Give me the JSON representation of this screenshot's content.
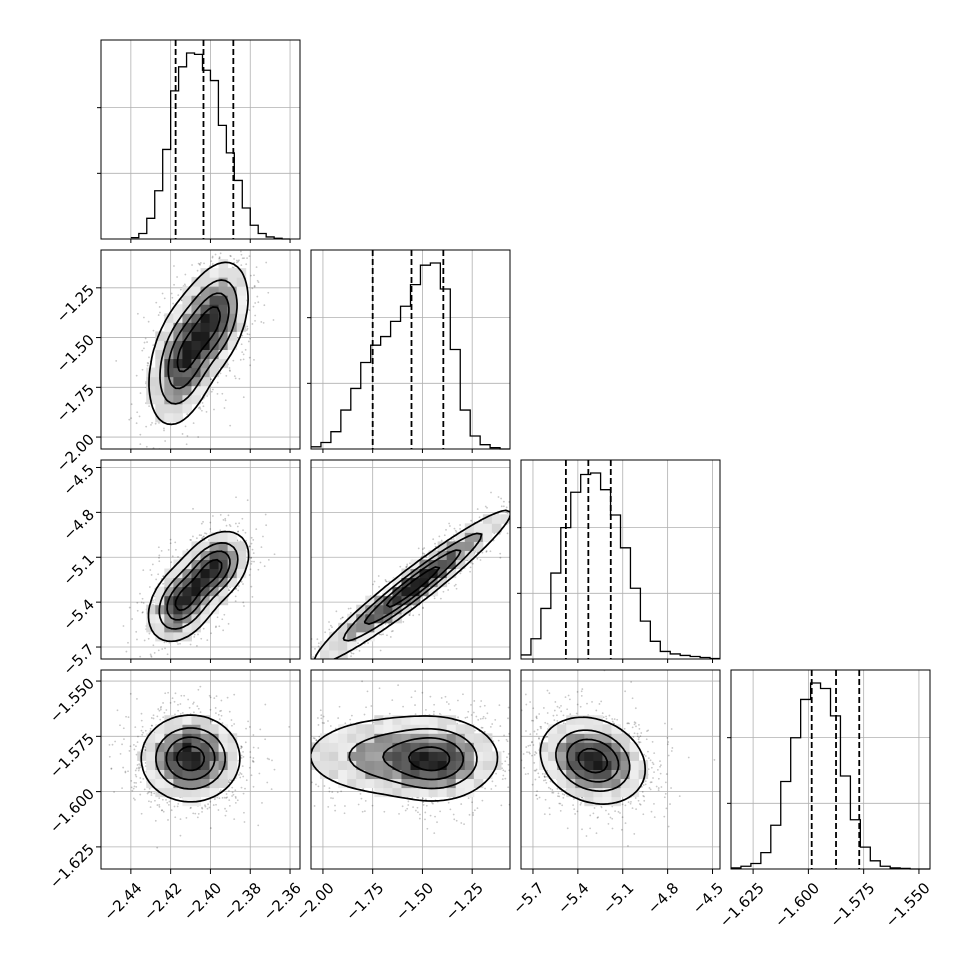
{
  "chart_data": {
    "type": "corner",
    "parameters": [
      {
        "range": [
          -2.455,
          -2.355
        ],
        "ticks": [
          -2.44,
          -2.42,
          -2.4,
          -2.38,
          -2.36
        ],
        "tick_labels": [
          "−2.44",
          "−2.42",
          "−2.40",
          "−2.38",
          "−2.36"
        ],
        "quantiles": [
          -2.4175,
          -2.4035,
          -2.3885
        ],
        "hist": {
          "edges": [
            -2.44,
            -2.436,
            -2.432,
            -2.428,
            -2.424,
            -2.42,
            -2.416,
            -2.412,
            -2.408,
            -2.404,
            -2.4,
            -2.396,
            -2.392,
            -2.388,
            -2.384,
            -2.38,
            -2.376,
            -2.372,
            -2.368,
            -2.364,
            -2.36
          ],
          "counts": [
            2,
            8,
            30,
            70,
            130,
            215,
            250,
            270,
            268,
            245,
            230,
            165,
            125,
            85,
            45,
            20,
            8,
            3,
            1,
            0
          ]
        }
      },
      {
        "range": [
          -2.06,
          -1.06
        ],
        "ticks": [
          -2.0,
          -1.75,
          -1.5,
          -1.25
        ],
        "tick_labels": [
          "−2.00",
          "−1.75",
          "−1.50",
          "−1.25"
        ],
        "quantiles": [
          -1.75,
          -1.555,
          -1.395
        ],
        "hist": {
          "edges": [
            -2.06,
            -2.01,
            -1.96,
            -1.91,
            -1.86,
            -1.81,
            -1.76,
            -1.71,
            -1.66,
            -1.61,
            -1.56,
            -1.51,
            -1.46,
            -1.41,
            -1.36,
            -1.31,
            -1.26,
            -1.21,
            -1.16,
            -1.11,
            -1.06
          ],
          "counts": [
            5,
            15,
            40,
            90,
            140,
            200,
            240,
            260,
            295,
            330,
            380,
            425,
            430,
            370,
            230,
            90,
            30,
            10,
            3,
            0
          ]
        }
      },
      {
        "range": [
          -5.78,
          -4.45
        ],
        "ticks": [
          -5.7,
          -5.4,
          -5.1,
          -4.8,
          -4.5
        ],
        "tick_labels": [
          "−5.7",
          "−5.4",
          "−5.1",
          "−4.8",
          "−4.5"
        ],
        "quantiles": [
          -5.48,
          -5.33,
          -5.18
        ],
        "hist": {
          "edges": [
            -5.78,
            -5.7135,
            -5.647,
            -5.5805,
            -5.514,
            -5.4475,
            -5.381,
            -5.3145,
            -5.248,
            -5.1815,
            -5.115,
            -5.0485,
            -4.982,
            -4.9155,
            -4.849,
            -4.7825,
            -4.716,
            -4.6495,
            -4.583,
            -4.5165,
            -4.45
          ],
          "counts": [
            8,
            40,
            100,
            170,
            260,
            330,
            365,
            368,
            335,
            285,
            220,
            140,
            75,
            35,
            15,
            10,
            7,
            5,
            3,
            1
          ]
        }
      },
      {
        "range": [
          -1.635,
          -1.545
        ],
        "ticks": [
          -1.625,
          -1.6,
          -1.575,
          -1.55
        ],
        "tick_labels": [
          "−1.625",
          "−1.600",
          "−1.575",
          "−1.550"
        ],
        "quantiles": [
          -1.5985,
          -1.5875,
          -1.577
        ],
        "hist": {
          "edges": [
            -1.635,
            -1.6305,
            -1.626,
            -1.6215,
            -1.617,
            -1.6125,
            -1.608,
            -1.6035,
            -1.599,
            -1.5945,
            -1.59,
            -1.5855,
            -1.581,
            -1.5765,
            -1.572,
            -1.5675,
            -1.563,
            -1.5585,
            -1.554,
            -1.5495,
            -1.545
          ],
          "counts": [
            2,
            5,
            10,
            30,
            80,
            160,
            240,
            310,
            340,
            330,
            280,
            170,
            90,
            40,
            15,
            5,
            2,
            1,
            0,
            0
          ]
        }
      }
    ],
    "pairs": [
      {
        "row": 1,
        "col": 0,
        "centers": [
          {
            "x": -2.414,
            "y": -1.62,
            "amp": 1.0,
            "sx": 0.0085,
            "sy": 0.16,
            "rho": 0.35
          },
          {
            "x": -2.398,
            "y": -1.4,
            "amp": 1.0,
            "sx": 0.0085,
            "sy": 0.14,
            "rho": 0.35
          }
        ],
        "levels": [
          0.12,
          0.35,
          0.6,
          0.85
        ]
      },
      {
        "row": 2,
        "col": 0,
        "centers": [
          {
            "x": -2.414,
            "y": -5.4,
            "amp": 1.0,
            "sx": 0.0085,
            "sy": 0.13,
            "rho": 0.35
          },
          {
            "x": -2.398,
            "y": -5.17,
            "amp": 1.0,
            "sx": 0.0085,
            "sy": 0.12,
            "rho": 0.35
          }
        ],
        "levels": [
          0.12,
          0.35,
          0.6,
          0.85
        ]
      },
      {
        "row": 2,
        "col": 1,
        "centers": [
          {
            "x": -1.55,
            "y": -5.3,
            "amp": 1.0,
            "sx": 0.24,
            "sy": 0.25,
            "rho": 0.96
          }
        ],
        "levels": [
          0.12,
          0.35,
          0.6,
          0.85
        ]
      },
      {
        "row": 3,
        "col": 0,
        "centers": [
          {
            "x": -2.41,
            "y": -1.585,
            "amp": 1.0,
            "sx": 0.012,
            "sy": 0.0095,
            "rho": 0.0
          }
        ],
        "levels": [
          0.12,
          0.35,
          0.6,
          0.85
        ]
      },
      {
        "row": 3,
        "col": 1,
        "centers": [
          {
            "x": -1.62,
            "y": -1.584,
            "amp": 1.0,
            "sx": 0.25,
            "sy": 0.0095,
            "rho": 0.0
          },
          {
            "x": -1.42,
            "y": -1.586,
            "amp": 1.0,
            "sx": 0.13,
            "sy": 0.009,
            "rho": 0.0
          }
        ],
        "levels": [
          0.12,
          0.35,
          0.6,
          0.85
        ]
      },
      {
        "row": 3,
        "col": 2,
        "centers": [
          {
            "x": -5.3,
            "y": -1.586,
            "amp": 1.0,
            "sx": 0.17,
            "sy": 0.0095,
            "rho": -0.2
          }
        ],
        "levels": [
          0.12,
          0.35,
          0.6,
          0.85
        ]
      }
    ],
    "grid": true,
    "title": "",
    "legend": null
  }
}
